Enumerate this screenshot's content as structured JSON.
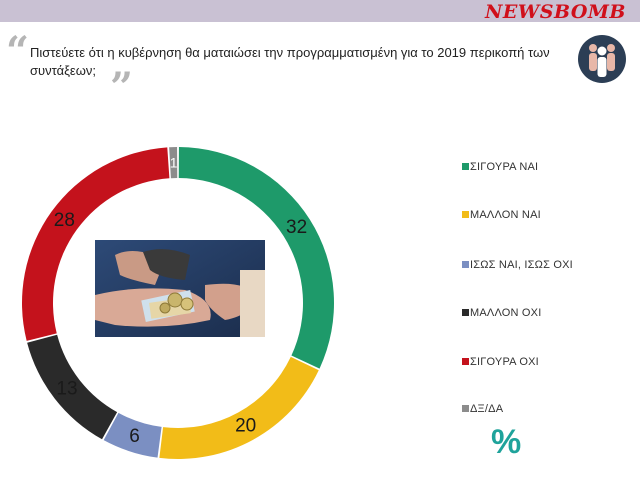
{
  "header": {
    "logo_text": "NEWSBOMB"
  },
  "question": {
    "text": "Πιστεύετε ότι η κυβέρνηση θα ματαιώσει την προγραμματισμένη για το 2019 περικοπή των συντάξεων;"
  },
  "chart_data": {
    "type": "pie",
    "variant": "donut",
    "categories": [
      "ΣΙΓΟΥΡΑ ΝΑΙ",
      "ΜΑΛΛΟΝ ΝΑΙ",
      "ΙΣΩΣ ΝΑΙ, ΙΣΩΣ ΟΧΙ",
      "ΜΑΛΛΟΝ ΟΧΙ",
      "ΣΙΓΟΥΡΑ ΟΧΙ",
      "ΔΞ/ΔΑ"
    ],
    "values": [
      32,
      20,
      6,
      13,
      28,
      1
    ],
    "value_labels": [
      "32",
      "20",
      "6",
      "13",
      "28",
      "1"
    ],
    "colors": [
      "#1e9a6a",
      "#f2bc18",
      "#7b8fc2",
      "#2a2a2a",
      "#c4121c",
      "#8c8c8c"
    ],
    "unit_symbol": "%",
    "legend_position": "right"
  }
}
